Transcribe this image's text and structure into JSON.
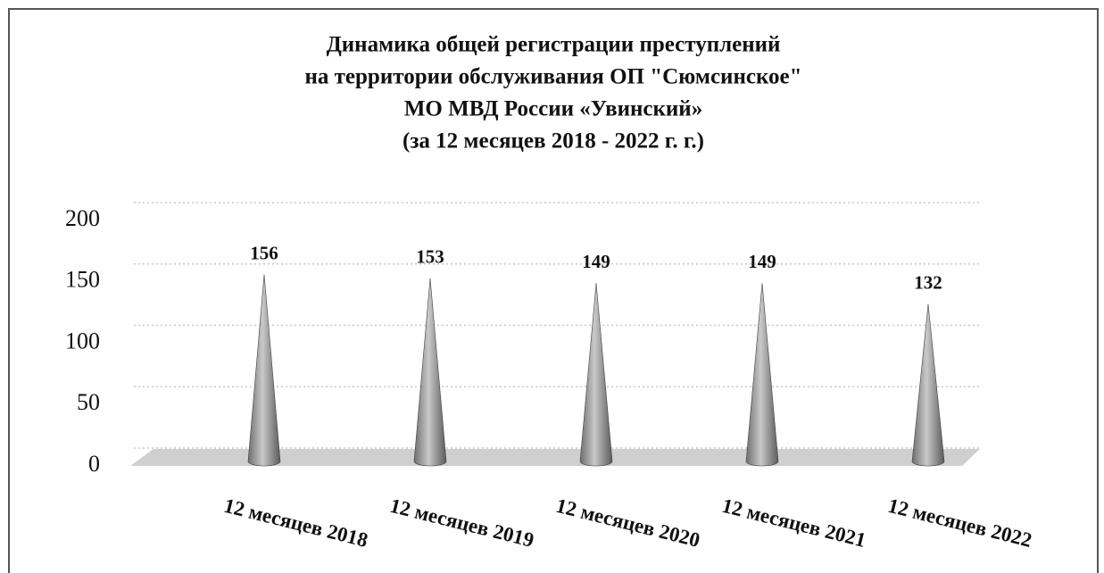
{
  "chart_data": {
    "type": "cone",
    "title": [
      "Динамика общей регистрации преступлений",
      "на территории обслуживания ОП \"Сюмсинское\"",
      "МО МВД России «Увинский»",
      "(за 12 месяцев 2018 - 2022 г. г.)"
    ],
    "categories": [
      "12 месяцев 2018",
      "12 месяцев 2019",
      "12 месяцев 2020",
      "12 месяцев 2021",
      "12 месяцев 2022"
    ],
    "values": [
      156,
      153,
      149,
      149,
      132
    ],
    "color": "#9a9a9a",
    "ylim": [
      0,
      200
    ],
    "yticks": [
      0,
      50,
      100,
      150,
      200
    ],
    "grid": true
  }
}
